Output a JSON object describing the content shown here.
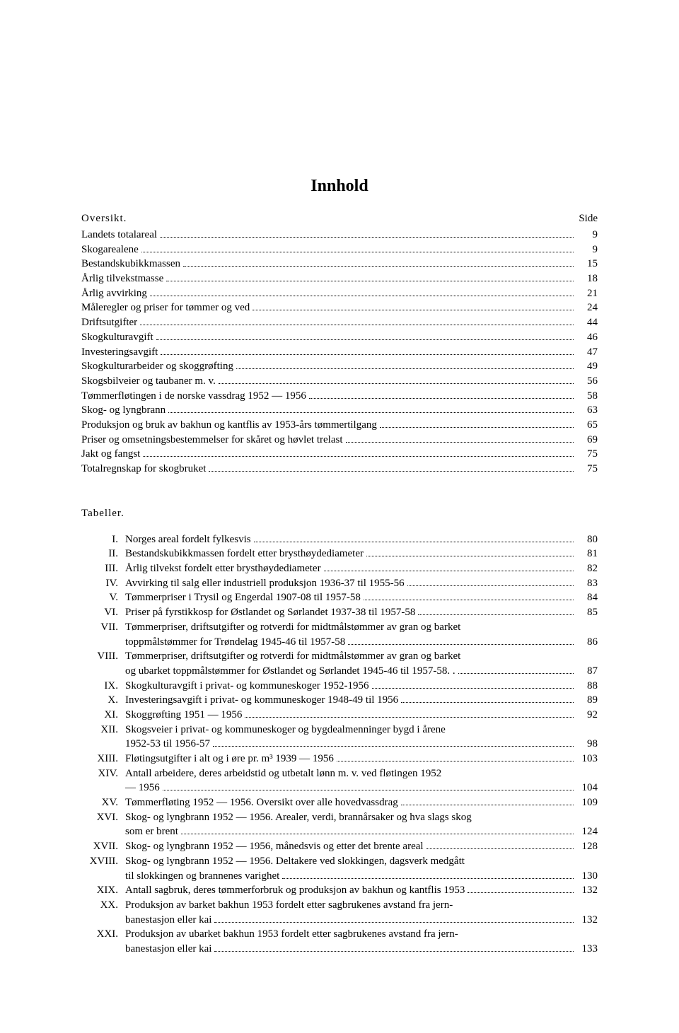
{
  "title": "Innhold",
  "oversikt_label": "Oversikt.",
  "side_label": "Side",
  "oversikt": [
    {
      "label": "Landets totalareal",
      "page": "9"
    },
    {
      "label": "Skogarealene",
      "page": "9"
    },
    {
      "label": "Bestandskubikkmassen",
      "page": "15"
    },
    {
      "label": "Årlig tilvekstmasse",
      "page": "18"
    },
    {
      "label": "Årlig avvirking",
      "page": "21"
    },
    {
      "label": "Måleregler og priser for tømmer og ved",
      "page": "24"
    },
    {
      "label": "Driftsutgifter",
      "page": "44"
    },
    {
      "label": "Skogkulturavgift",
      "page": "46"
    },
    {
      "label": "Investeringsavgift",
      "page": "47"
    },
    {
      "label": "Skogkulturarbeider og skoggrøfting",
      "page": "49"
    },
    {
      "label": "Skogsbilveier og taubaner m. v.",
      "page": "56"
    },
    {
      "label": "Tømmerfløtingen i de norske vassdrag 1952 — 1956",
      "page": "58"
    },
    {
      "label": "Skog- og lyngbrann",
      "page": "63"
    },
    {
      "label": "Produksjon og bruk av bakhun og kantflis av 1953-års tømmertilgang",
      "page": "65"
    },
    {
      "label": "Priser og omsetningsbestemmelser for skåret og høvlet trelast",
      "page": "69"
    },
    {
      "label": "Jakt og fangst",
      "page": "75"
    },
    {
      "label": "Totalregnskap for skogbruket",
      "page": "75"
    }
  ],
  "tabeller_label": "Tabeller.",
  "tabeller": [
    {
      "num": "I.",
      "lines": [
        "Norges areal fordelt fylkesvis"
      ],
      "page": "80"
    },
    {
      "num": "II.",
      "lines": [
        "Bestandskubikkmassen fordelt etter brysthøydediameter"
      ],
      "page": "81"
    },
    {
      "num": "III.",
      "lines": [
        "Årlig tilvekst fordelt etter brysthøydediameter"
      ],
      "page": "82"
    },
    {
      "num": "IV.",
      "lines": [
        "Avvirking til salg eller industriell produksjon 1936-37 til 1955-56"
      ],
      "page": "83"
    },
    {
      "num": "V.",
      "lines": [
        "Tømmerpriser i Trysil og Engerdal 1907-08 til 1957-58"
      ],
      "page": "84"
    },
    {
      "num": "VI.",
      "lines": [
        "Priser på fyrstikkosp for Østlandet og Sørlandet 1937-38 til 1957-58"
      ],
      "page": "85"
    },
    {
      "num": "VII.",
      "lines": [
        "Tømmerpriser, driftsutgifter og rotverdi for midtmålstømmer av gran og barket",
        "toppmålstømmer for Trøndelag 1945-46 til 1957-58"
      ],
      "page": "86"
    },
    {
      "num": "VIII.",
      "lines": [
        "Tømmerpriser, driftsutgifter og rotverdi for midtmålstømmer av gran og barket",
        "og ubarket toppmålstømmer for Østlandet og Sørlandet 1945-46 til 1957-58. ."
      ],
      "page": "87"
    },
    {
      "num": "IX.",
      "lines": [
        "Skogkulturavgift i privat- og kommuneskoger 1952-1956"
      ],
      "page": "88"
    },
    {
      "num": "X.",
      "lines": [
        "Investeringsavgift i privat- og kommuneskoger 1948-49 til 1956"
      ],
      "page": "89"
    },
    {
      "num": "XI.",
      "lines": [
        "Skoggrøfting 1951 — 1956"
      ],
      "page": "92"
    },
    {
      "num": "XII.",
      "lines": [
        "Skogsveier i privat- og kommuneskoger og bygdealmenninger bygd i årene",
        "1952-53 til 1956-57"
      ],
      "page": "98"
    },
    {
      "num": "XIII.",
      "lines": [
        "Fløtingsutgifter i alt og i øre pr. m³ 1939 — 1956"
      ],
      "page": "103"
    },
    {
      "num": "XIV.",
      "lines": [
        "Antall arbeidere, deres arbeidstid og utbetalt lønn m. v. ved fløtingen 1952",
        "— 1956"
      ],
      "page": "104"
    },
    {
      "num": "XV.",
      "lines": [
        "Tømmerfløting 1952 — 1956. Oversikt over alle hovedvassdrag"
      ],
      "page": "109"
    },
    {
      "num": "XVI.",
      "lines": [
        "Skog- og lyngbrann 1952 — 1956. Arealer, verdi, brannårsaker og hva slags skog",
        "som er brent"
      ],
      "page": "124"
    },
    {
      "num": "XVII.",
      "lines": [
        "Skog- og lyngbrann 1952 — 1956, månedsvis og etter det brente areal"
      ],
      "page": "128"
    },
    {
      "num": "XVIII.",
      "lines": [
        "Skog- og lyngbrann 1952 — 1956. Deltakere ved slokkingen, dagsverk medgått",
        "til slokkingen og brannenes varighet"
      ],
      "page": "130"
    },
    {
      "num": "XIX.",
      "lines": [
        "Antall sagbruk, deres tømmerforbruk og produksjon av bakhun og kantflis 1953"
      ],
      "page": "132"
    },
    {
      "num": "XX.",
      "lines": [
        "Produksjon av barket bakhun 1953 fordelt etter sagbrukenes avstand fra jern-",
        "banestasjon eller kai"
      ],
      "page": "132"
    },
    {
      "num": "XXI.",
      "lines": [
        "Produksjon av ubarket bakhun 1953 fordelt etter sagbrukenes avstand fra jern-",
        "banestasjon eller kai"
      ],
      "page": "133"
    }
  ]
}
